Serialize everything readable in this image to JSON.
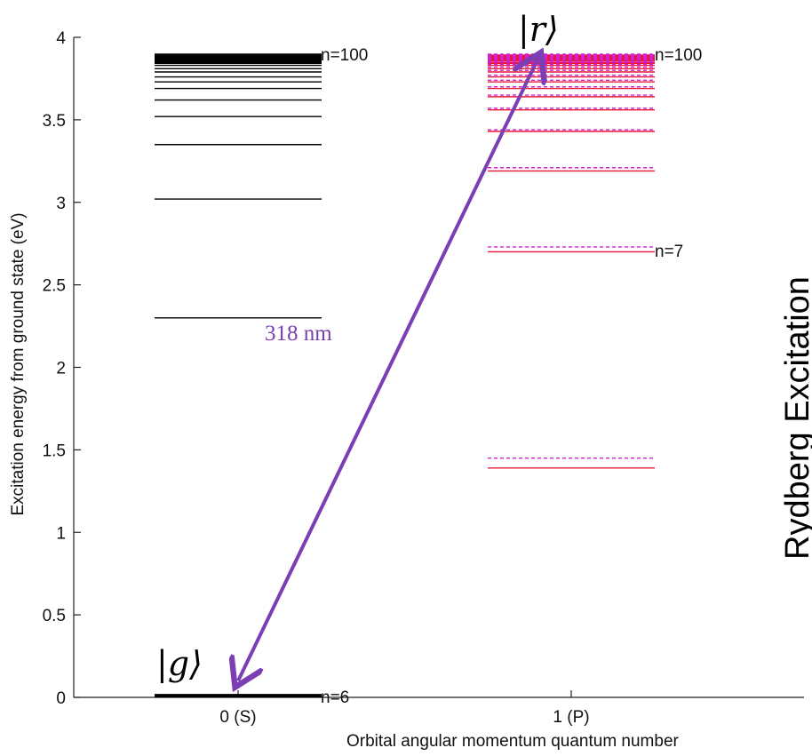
{
  "chart_data": {
    "type": "energy-level-diagram",
    "title": "",
    "xlabel": "Orbital angular momentum quantum number",
    "ylabel": "Excitation energy from ground state (eV)",
    "ylim": [
      0,
      4
    ],
    "yticks": [
      "0",
      "0.5",
      "1",
      "1.5",
      "2",
      "2.5",
      "3",
      "3.5",
      "4"
    ],
    "ytick_values": [
      0,
      0.5,
      1,
      1.5,
      2,
      2.5,
      3,
      3.5,
      4
    ],
    "xticks": [
      "0 (S)",
      "1 (P)"
    ],
    "xtick_values": [
      0,
      1
    ],
    "grid": false,
    "side_text": "Rydberg Excitation",
    "series": [
      {
        "name": "S",
        "x": 0,
        "color": "#000000",
        "style": "solid",
        "levels": [
          0.01,
          2.3,
          3.02,
          3.35,
          3.52,
          3.62,
          3.69,
          3.73,
          3.76,
          3.79,
          3.81,
          3.83,
          3.845,
          3.855,
          3.865,
          3.875,
          3.885,
          3.895
        ]
      },
      {
        "name": "P (solid)",
        "x": 1,
        "color": "#e8163a",
        "style": "solid",
        "levels": [
          1.39,
          2.7,
          3.19,
          3.43,
          3.56,
          3.64,
          3.69,
          3.73,
          3.76,
          3.79,
          3.81,
          3.83,
          3.845,
          3.86,
          3.87,
          3.88,
          3.89
        ]
      },
      {
        "name": "P (dashed)",
        "x": 1,
        "color": "#d11fd6",
        "style": "dashed",
        "levels": [
          1.45,
          2.73,
          3.21,
          3.44,
          3.57,
          3.65,
          3.7,
          3.74,
          3.77,
          3.8,
          3.82,
          3.835,
          3.85,
          3.865,
          3.875,
          3.885,
          3.895
        ]
      }
    ],
    "annotations": [
      {
        "text": "n=100",
        "x": 0,
        "y": 3.9,
        "role": "n-label-s-top"
      },
      {
        "text": "n=6",
        "x": 0,
        "y": 0.01,
        "role": "n-label-s-bottom"
      },
      {
        "text": "n=100",
        "x": 1,
        "y": 3.9,
        "role": "n-label-p-top"
      },
      {
        "text": "n=7",
        "x": 1,
        "y": 2.7,
        "role": "n-label-p-bottom"
      },
      {
        "text": "|g⟩",
        "role": "ground-ket"
      },
      {
        "text": "|r⟩",
        "role": "rydberg-ket"
      },
      {
        "text": "318 nm",
        "role": "wavelength"
      }
    ],
    "transition": {
      "from": {
        "x": 0,
        "y": 0.1
      },
      "to": {
        "x": 0.9,
        "y": 3.87
      },
      "color": "#7a3fb2",
      "label": "318 nm"
    }
  }
}
